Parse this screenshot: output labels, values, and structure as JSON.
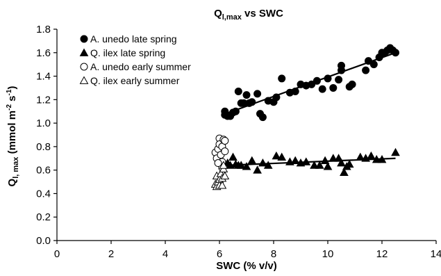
{
  "chart_data": {
    "type": "scatter",
    "title": {
      "main": "Q",
      "sub": "l,max",
      "rest": " vs SWC"
    },
    "xlabel": "SWC (% v/v)",
    "ylabel": {
      "main": "Q",
      "sub": "l, max",
      "units_a": " (mmol m",
      "sup_a": "-2",
      "units_b": " s",
      "sup_b": "-1",
      "units_c": ")"
    },
    "xlim": [
      0,
      14
    ],
    "ylim": [
      0.0,
      1.8
    ],
    "x_ticks": [
      "0",
      "2",
      "4",
      "6",
      "8",
      "10",
      "12",
      "14"
    ],
    "y_ticks": [
      "0.0",
      "0.2",
      "0.4",
      "0.6",
      "0.8",
      "1.0",
      "1.2",
      "1.4",
      "1.6",
      "1.8"
    ],
    "grid": false,
    "legend_position": "top-left",
    "series": [
      {
        "name": "A. unedo late spring",
        "marker": "circle",
        "filled": true,
        "color": "#000000",
        "trendline": [
          [
            6.1,
            1.07
          ],
          [
            12.5,
            1.6
          ]
        ],
        "points": [
          [
            6.2,
            1.07
          ],
          [
            6.2,
            1.1
          ],
          [
            6.3,
            1.06
          ],
          [
            6.4,
            1.06
          ],
          [
            6.5,
            1.09
          ],
          [
            6.6,
            1.1
          ],
          [
            6.7,
            1.27
          ],
          [
            6.8,
            1.17
          ],
          [
            6.9,
            1.17
          ],
          [
            7.0,
            1.24
          ],
          [
            7.1,
            1.17
          ],
          [
            7.2,
            1.18
          ],
          [
            7.4,
            1.25
          ],
          [
            7.5,
            1.08
          ],
          [
            7.6,
            1.05
          ],
          [
            7.8,
            1.19
          ],
          [
            8.0,
            1.18
          ],
          [
            8.1,
            1.22
          ],
          [
            8.3,
            1.38
          ],
          [
            8.6,
            1.26
          ],
          [
            8.8,
            1.27
          ],
          [
            9.0,
            1.33
          ],
          [
            9.2,
            1.32
          ],
          [
            9.4,
            1.33
          ],
          [
            9.6,
            1.36
          ],
          [
            9.8,
            1.29
          ],
          [
            10.0,
            1.38
          ],
          [
            10.2,
            1.3
          ],
          [
            10.4,
            1.37
          ],
          [
            10.5,
            1.45
          ],
          [
            10.5,
            1.49
          ],
          [
            10.8,
            1.31
          ],
          [
            10.9,
            1.33
          ],
          [
            11.4,
            1.45
          ],
          [
            11.5,
            1.53
          ],
          [
            11.7,
            1.5
          ],
          [
            11.9,
            1.56
          ],
          [
            12.0,
            1.6
          ],
          [
            12.1,
            1.6
          ],
          [
            12.2,
            1.62
          ],
          [
            12.3,
            1.64
          ],
          [
            12.4,
            1.62
          ],
          [
            12.5,
            1.6
          ]
        ]
      },
      {
        "name": "Q. ilex late spring",
        "marker": "triangle",
        "filled": true,
        "color": "#000000",
        "trendline": [
          [
            6.2,
            0.64
          ],
          [
            12.5,
            0.7
          ]
        ],
        "points": [
          [
            6.3,
            0.66
          ],
          [
            6.4,
            0.64
          ],
          [
            6.5,
            0.71
          ],
          [
            6.6,
            0.65
          ],
          [
            6.7,
            0.64
          ],
          [
            6.8,
            0.64
          ],
          [
            7.0,
            0.63
          ],
          [
            7.2,
            0.68
          ],
          [
            7.4,
            0.6
          ],
          [
            7.6,
            0.66
          ],
          [
            7.8,
            0.64
          ],
          [
            8.1,
            0.72
          ],
          [
            8.3,
            0.71
          ],
          [
            8.6,
            0.67
          ],
          [
            8.8,
            0.68
          ],
          [
            9.0,
            0.66
          ],
          [
            9.2,
            0.67
          ],
          [
            9.5,
            0.64
          ],
          [
            9.7,
            0.64
          ],
          [
            9.9,
            0.68
          ],
          [
            10.0,
            0.63
          ],
          [
            10.2,
            0.7
          ],
          [
            10.4,
            0.7
          ],
          [
            10.5,
            0.66
          ],
          [
            10.6,
            0.58
          ],
          [
            10.7,
            0.63
          ],
          [
            10.8,
            0.65
          ],
          [
            11.2,
            0.71
          ],
          [
            11.4,
            0.7
          ],
          [
            11.6,
            0.72
          ],
          [
            11.8,
            0.69
          ],
          [
            12.0,
            0.69
          ],
          [
            12.5,
            0.75
          ]
        ]
      },
      {
        "name": "A. unedo early summer",
        "marker": "circle",
        "filled": false,
        "color": "#000000",
        "points": [
          [
            5.85,
            0.75
          ],
          [
            5.9,
            0.7
          ],
          [
            5.95,
            0.78
          ],
          [
            6.0,
            0.87
          ],
          [
            6.0,
            0.82
          ],
          [
            6.05,
            0.73
          ],
          [
            6.1,
            0.67
          ],
          [
            6.1,
            0.8
          ],
          [
            6.15,
            0.86
          ],
          [
            6.2,
            0.76
          ],
          [
            6.2,
            0.85
          ],
          [
            6.1,
            0.62
          ],
          [
            5.95,
            0.66
          ]
        ]
      },
      {
        "name": "Q. ilex early summer",
        "marker": "triangle",
        "filled": false,
        "color": "#000000",
        "points": [
          [
            5.85,
            0.48
          ],
          [
            5.9,
            0.46
          ],
          [
            5.9,
            0.55
          ],
          [
            5.95,
            0.5
          ],
          [
            6.0,
            0.47
          ],
          [
            6.0,
            0.52
          ],
          [
            6.05,
            0.57
          ],
          [
            6.1,
            0.47
          ],
          [
            6.1,
            0.53
          ],
          [
            6.15,
            0.61
          ],
          [
            6.2,
            0.55
          ],
          [
            6.15,
            0.64
          ]
        ]
      }
    ]
  }
}
